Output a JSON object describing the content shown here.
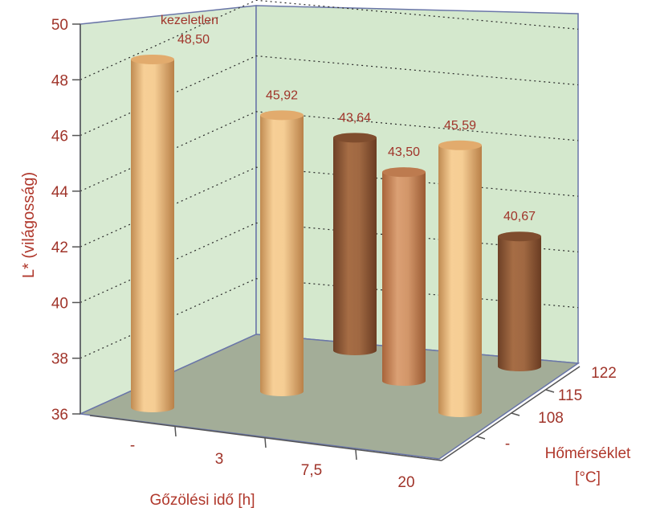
{
  "chart_data": {
    "type": "bar",
    "three_d": true,
    "ylabel": "L* (világosság)",
    "xlabel": "Gőzölési idő [h]",
    "zlabel_line1": "Hőmérséklet",
    "zlabel_line2": "[°C]",
    "ylim": [
      36,
      50
    ],
    "y_ticks": [
      "36",
      "38",
      "40",
      "42",
      "44",
      "46",
      "48",
      "50"
    ],
    "x_categories": [
      "-",
      "3",
      "7,5",
      "20"
    ],
    "z_categories": [
      "-",
      "108",
      "115",
      "122"
    ],
    "grid": true,
    "bars": [
      {
        "x": "-",
        "z": "-",
        "value": 48.5,
        "label": "48,50",
        "note": "kezeletlen"
      },
      {
        "x": "3",
        "z": "115",
        "value": 45.92,
        "label": "45,92"
      },
      {
        "x": "7,5",
        "z": "122",
        "value": 43.64,
        "label": "43,64"
      },
      {
        "x": "7,5",
        "z": "108",
        "value": 43.5,
        "label": "43,50"
      },
      {
        "x": "20",
        "z": "-",
        "value": 45.59,
        "label": "45,59"
      },
      {
        "x": "20",
        "z": "122",
        "value": 40.67,
        "label": "40,67"
      }
    ],
    "colors": {
      "wall": "#d8ead2",
      "floor": "#a3ad98",
      "light_bar": "#e9bb83",
      "mid_bar": "#c98a5f",
      "dark_bar": "#955f3c",
      "text": "#a0342a"
    }
  }
}
